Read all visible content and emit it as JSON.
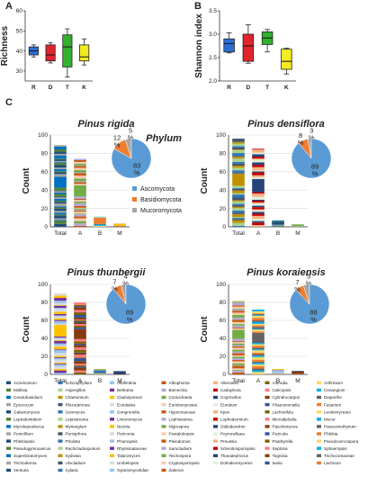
{
  "chart_data": [
    {
      "panel": "A",
      "type": "box",
      "ylabel": "Richness",
      "categories": [
        "R",
        "D",
        "T",
        "K"
      ],
      "ylim": [
        25,
        60
      ],
      "yticks": [
        30,
        40,
        50,
        60
      ],
      "colors": [
        "#2b6fd6",
        "#e0242c",
        "#32b02e",
        "#f2ea22"
      ],
      "boxes": [
        {
          "min": 37,
          "q1": 38,
          "median": 40,
          "q3": 42,
          "max": 43
        },
        {
          "min": 34,
          "q1": 35,
          "median": 38,
          "q3": 43,
          "max": 44
        },
        {
          "min": 27,
          "q1": 32,
          "median": 42,
          "q3": 48,
          "max": 51
        },
        {
          "min": 33,
          "q1": 35,
          "median": 37,
          "q3": 43,
          "max": 46
        }
      ]
    },
    {
      "panel": "B",
      "type": "box",
      "ylabel": "Shannon index",
      "categories": [
        "R",
        "D",
        "T",
        "K"
      ],
      "ylim": [
        2.0,
        3.5
      ],
      "yticks": [
        2.0,
        2.5,
        3.0,
        3.5
      ],
      "colors": [
        "#2b6fd6",
        "#e0242c",
        "#32b02e",
        "#f2ea22"
      ],
      "boxes": [
        {
          "min": 2.6,
          "q1": 2.62,
          "median": 2.8,
          "q3": 2.9,
          "max": 3.03
        },
        {
          "min": 2.38,
          "q1": 2.42,
          "median": 2.75,
          "q3": 3.0,
          "max": 3.2
        },
        {
          "min": 2.62,
          "q1": 2.78,
          "median": 2.92,
          "q3": 3.05,
          "max": 3.1
        },
        {
          "min": 2.15,
          "q1": 2.25,
          "median": 2.42,
          "q3": 2.68,
          "max": 2.7
        }
      ]
    },
    {
      "panel": "C",
      "type": "bar",
      "title": "Pinus rigida",
      "ylabel": "Count",
      "categories": [
        "Total",
        "A",
        "B",
        "M"
      ],
      "values": [
        89,
        74,
        11,
        4
      ],
      "ylim": [
        0,
        100
      ],
      "yticks": [
        0,
        20,
        40,
        60,
        80,
        100
      ],
      "pie": {
        "values": [
          83,
          12,
          5
        ],
        "labels": [
          "83\n%",
          "12\n%",
          "5\n%"
        ]
      }
    },
    {
      "panel": "C",
      "type": "bar",
      "title": "Pinus densiflora",
      "ylabel": "Count",
      "categories": [
        "Total",
        "A",
        "B",
        "M"
      ],
      "values": [
        96,
        85,
        7,
        3
      ],
      "ylim": [
        0,
        100
      ],
      "yticks": [
        0,
        20,
        40,
        60,
        80,
        100
      ],
      "pie": {
        "values": [
          89,
          8,
          3
        ],
        "labels": [
          "89\n%",
          "8\n%",
          "3\n%"
        ]
      }
    },
    {
      "panel": "C",
      "type": "bar",
      "title": "Pinus thunbergii",
      "ylabel": "Count",
      "categories": [
        "Total",
        "A",
        "B",
        "M"
      ],
      "values": [
        90,
        80,
        6,
        4
      ],
      "ylim": [
        0,
        100
      ],
      "yticks": [
        0,
        20,
        40,
        60,
        80,
        100
      ],
      "pie": {
        "values": [
          89,
          7,
          4
        ],
        "labels": [
          "89\n%",
          "7\n%",
          "4\n%"
        ]
      }
    },
    {
      "panel": "C",
      "type": "bar",
      "title": "Pinus koraiensis",
      "ylabel": "Count",
      "categories": [
        "Total",
        "A",
        "B",
        "M"
      ],
      "values": [
        82,
        72,
        6,
        4
      ],
      "ylim": [
        0,
        100
      ],
      "yticks": [
        0,
        20,
        40,
        60,
        80,
        100
      ],
      "pie": {
        "values": [
          88,
          7,
          5
        ],
        "labels": [
          "88\n%",
          "7\n%",
          "5\n%"
        ]
      }
    }
  ],
  "phylum_legend": {
    "title": "Phylum",
    "items": [
      {
        "name": "Ascomycota",
        "color": "#5b9bd5"
      },
      {
        "name": "Basidiomycota",
        "color": "#ed7d31"
      },
      {
        "name": "Mucoromycota",
        "color": "#a5a5a5"
      }
    ]
  },
  "panel_labels": [
    "A",
    "B",
    "C"
  ],
  "genus_palette": [
    "#1f4e79",
    "#2e75b6",
    "#9dc3e6",
    "#c55a11",
    "#f4b183",
    "#7f6000",
    "#ffd966",
    "#548235",
    "#a9d18e",
    "#7030a0",
    "#b4a7d6",
    "#c00000",
    "#ff7c80",
    "#00b0f0",
    "#0070c0",
    "#bf9000",
    "#ffc000",
    "#70ad47",
    "#264478",
    "#843c0c",
    "#636363",
    "#a5a5a5",
    "#44546a",
    "#d6dce5",
    "#f8cbad",
    "#e2f0d9",
    "#2f5597",
    "#ed7d31"
  ],
  "genus_legend": [
    "Acremonium",
    "Schizophyllum",
    "Albifimbria",
    "Albophoma",
    "Alternaria",
    "Antrodia",
    "Arthrinium",
    "Mollisia",
    "Aspergillus",
    "Beltrania",
    "Bionectria",
    "Cadophora",
    "Calicopsis",
    "Cenangium",
    "Ceratobasidium",
    "Chaetomium",
    "Cladosporium",
    "Coniochaeta",
    "Coprinellus",
    "Cylindrocarpon",
    "Diaporthe",
    "Epicoccum",
    "Rhizodermea",
    "Eurotiales",
    "Eurotiomycetes",
    "Eurotium",
    "Phaeomoniella",
    "Fusarium",
    "Galactomyces",
    "Geomyces",
    "Gongronella",
    "Hypocreaceae",
    "Irpex",
    "Lachnellula",
    "Leotiomycetes",
    "Leptodontidium",
    "Leptostroma",
    "Limonomyces",
    "Lophiostoma",
    "Lophodermium",
    "Microdiplodia",
    "Mucor",
    "Mycoleptodiscus",
    "Myrianglum",
    "Nectria",
    "Nigrospora",
    "Oidiodendron",
    "Paecilomyces",
    "Paraconiothyrium",
    "Penicillium",
    "Peniophora",
    "Periconia",
    "Pestalotiopsis",
    "Peyronellaea",
    "Pezicula",
    "Phlebia",
    "Phlebiopsis",
    "Pholiota",
    "Phomopsis",
    "Pleiodomus",
    "Preussia",
    "Psathyrella",
    "Pseudocercospora",
    "Pseudogymnoascus",
    "Rachicladosporium",
    "Rhytismataceae",
    "Sarocladium",
    "Sclerotiosporiopsis",
    "Septoria",
    "Sphaeropsis",
    "Superstratomyces",
    "Sydowia",
    "Talaromyces",
    "Teichospora",
    "Thanatephorus",
    "Togninia",
    "Trichocomaceae",
    "Trichoderma",
    "Ulocladium",
    "Umbelopsis",
    "Cryptosporiopsis",
    "Dothideomycetes",
    "Isaria",
    "Lachnum",
    "Venturia",
    "Xylaria",
    "Xylariomycetidae",
    "Zalerion"
  ]
}
